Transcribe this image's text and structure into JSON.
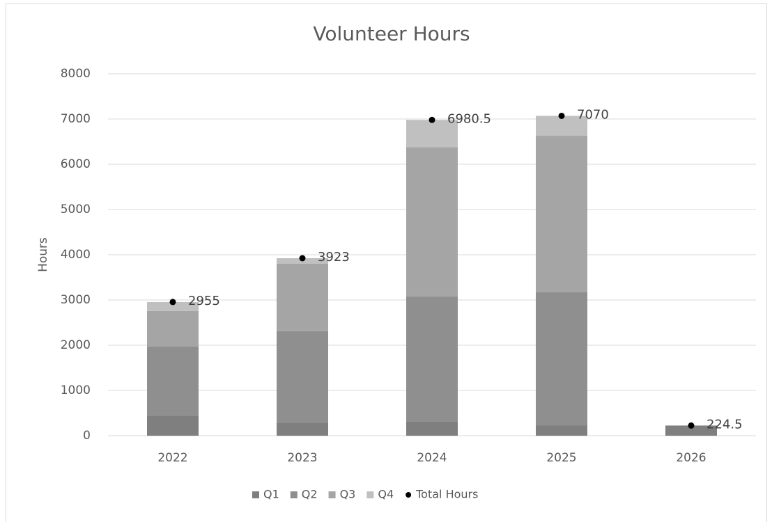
{
  "chart_data": {
    "type": "bar",
    "stacked": true,
    "title": "Volunteer Hours",
    "y_label": "Hours",
    "categories": [
      "2022",
      "2023",
      "2024",
      "2025",
      "2026"
    ],
    "series": [
      {
        "name": "Q1",
        "color": "#7f7f7f",
        "values": [
          450,
          290,
          320,
          230,
          224.5
        ]
      },
      {
        "name": "Q2",
        "color": "#8f8f8f",
        "values": [
          1520,
          2020,
          2760,
          2940,
          0
        ]
      },
      {
        "name": "Q3",
        "color": "#a5a5a5",
        "values": [
          785,
          1490,
          3300,
          3460,
          0
        ]
      },
      {
        "name": "Q4",
        "color": "#c0c0c0",
        "values": [
          200,
          123,
          600.5,
          440,
          0
        ]
      },
      {
        "name": "Total Hours",
        "type": "scatter",
        "color": "#000000",
        "values": [
          2955,
          3923,
          6980.5,
          7070,
          224.5
        ]
      }
    ],
    "ylim": [
      0,
      8000
    ],
    "yticks": [
      0,
      1000,
      2000,
      3000,
      4000,
      5000,
      6000,
      7000,
      8000
    ],
    "grid": true,
    "legend": "bottom"
  }
}
